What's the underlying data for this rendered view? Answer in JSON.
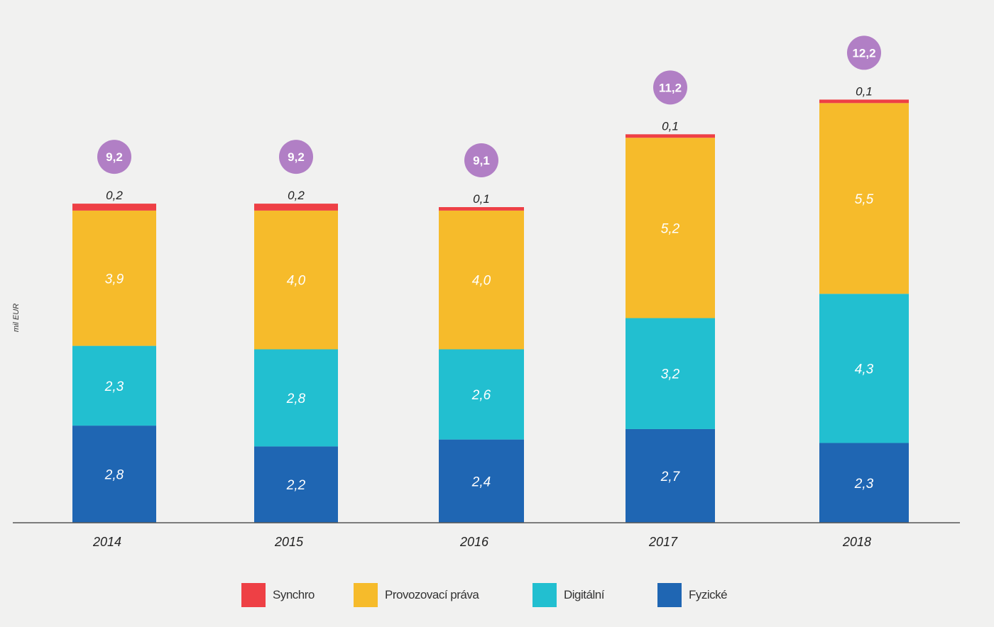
{
  "chart_data": {
    "type": "bar",
    "stacked": true,
    "ylabel": "mil EUR",
    "categories": [
      "2014",
      "2015",
      "2016",
      "2017",
      "2018"
    ],
    "series": [
      {
        "name": "Fyzické",
        "color": "#1f66b3",
        "values": [
          2.8,
          2.2,
          2.4,
          2.7,
          2.3
        ],
        "labels": [
          "2,8",
          "2,2",
          "2,4",
          "2,7",
          "2,3"
        ]
      },
      {
        "name": "Digitální",
        "color": "#22bfd0",
        "values": [
          2.3,
          2.8,
          2.6,
          3.2,
          4.3
        ],
        "labels": [
          "2,3",
          "2,8",
          "2,6",
          "3,2",
          "4,3"
        ]
      },
      {
        "name": "Provozovací práva",
        "color": "#f6bb2b",
        "values": [
          3.9,
          4.0,
          4.0,
          5.2,
          5.5
        ],
        "labels": [
          "3,9",
          "4,0",
          "4,0",
          "5,2",
          "5,5"
        ]
      },
      {
        "name": "Synchro",
        "color": "#ee4045",
        "values": [
          0.2,
          0.2,
          0.1,
          0.1,
          0.1
        ],
        "labels": [
          "0,2",
          "0,2",
          "0,1",
          "0,1",
          "0,1"
        ]
      }
    ],
    "totals": [
      9.2,
      9.2,
      9.1,
      11.2,
      12.2
    ],
    "total_labels": [
      "9,2",
      "9,2",
      "9,1",
      "11,2",
      "12,2"
    ],
    "total_badge_color": "#b17fc5",
    "legend": [
      "Synchro",
      "Provozovací práva",
      "Digitální",
      "Fyzické"
    ],
    "legend_position": "bottom"
  }
}
